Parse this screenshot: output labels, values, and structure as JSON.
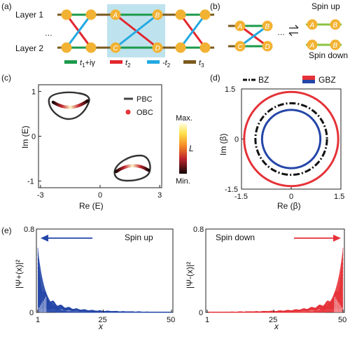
{
  "panels": {
    "a": {
      "label": "(a)",
      "layer1": "Layer 1",
      "layer2": "Layer 2",
      "dots": "…",
      "sites": [
        "A",
        "B",
        "C",
        "D"
      ],
      "legend": [
        {
          "text_main": "t",
          "sub": "1",
          "suffix": "+iγ",
          "color": "#1b9a4a"
        },
        {
          "text_main": "t",
          "sub": "2",
          "suffix": "",
          "color": "#e3262e"
        },
        {
          "text_main": "-t",
          "sub": "2",
          "suffix": "",
          "color": "#23a9e1"
        },
        {
          "text_main": "t",
          "sub": "3",
          "suffix": "",
          "color": "#7a5a1e"
        }
      ]
    },
    "b": {
      "label": "(b)",
      "spin_up": "Spin up",
      "spin_down": "Spin down",
      "dots": "…",
      "sites": [
        "A",
        "B",
        "C",
        "D"
      ]
    },
    "c": {
      "label": "(c)",
      "legend_pbc": "PBC",
      "legend_obc": "OBC",
      "colorbar_max": "Max.",
      "colorbar_min": "Min.",
      "colorbar_label": "L",
      "xlabel": "Re (E)",
      "ylabel": "Im (E)",
      "xticks": [
        "-3",
        "0",
        "3"
      ],
      "yticks": [
        "1",
        "0",
        "-1"
      ]
    },
    "d": {
      "label": "(d)",
      "legend_bz": "BZ",
      "legend_gbz": "GBZ",
      "xlabel": "Re (β)",
      "ylabel": "Im (β)",
      "xticks": [
        "-1.5",
        "0",
        "1.5"
      ],
      "yticks": [
        "1.5",
        "0",
        "-1.5"
      ]
    },
    "e": {
      "label": "(e)",
      "left": {
        "title": "Spin up",
        "ylabel": "|Ψ+(x)|²",
        "yticks": [
          "0.8",
          "0"
        ],
        "xticks": [
          "1",
          "25",
          "50"
        ],
        "xlabel": "x"
      },
      "right": {
        "title": "Spin down",
        "ylabel": "|Ψ-(x)|²",
        "yticks": [
          "0.8",
          "0"
        ],
        "xticks": [
          "1",
          "25",
          "50"
        ],
        "xlabel": "x"
      }
    }
  },
  "colors": {
    "green": "#1b9a4a",
    "red": "#e3262e",
    "blue": "#23a9e1",
    "brown": "#7a5a1e",
    "node": "#f2b233",
    "gbz": "#2446a8",
    "redcircle": "#e53238",
    "highlight": "#bfe3ee"
  },
  "chart_data": [
    {
      "type": "scatter",
      "panel": "c",
      "series": [
        {
          "name": "PBC",
          "kind": "closed-loop"
        },
        {
          "name": "OBC",
          "kind": "arc"
        }
      ],
      "xlim": [
        -3,
        3
      ],
      "ylim": [
        -1.2,
        1.2
      ]
    },
    {
      "type": "line",
      "panel": "d",
      "series": [
        {
          "name": "BZ",
          "radius": 1.0,
          "style": "dash-dot"
        },
        {
          "name": "GBZ",
          "radius": 0.85
        },
        {
          "radius": 1.25
        }
      ],
      "xlim": [
        -1.5,
        1.5
      ],
      "ylim": [
        -1.5,
        1.5
      ]
    },
    {
      "type": "area",
      "panel": "e-left",
      "title": "Spin up",
      "xlim": [
        1,
        50
      ],
      "ylim": [
        0,
        0.8
      ],
      "localized_at": 1,
      "peak": 0.62
    },
    {
      "type": "area",
      "panel": "e-right",
      "title": "Spin down",
      "xlim": [
        1,
        50
      ],
      "ylim": [
        0,
        0.8
      ],
      "localized_at": 50,
      "peak": 0.62
    }
  ]
}
